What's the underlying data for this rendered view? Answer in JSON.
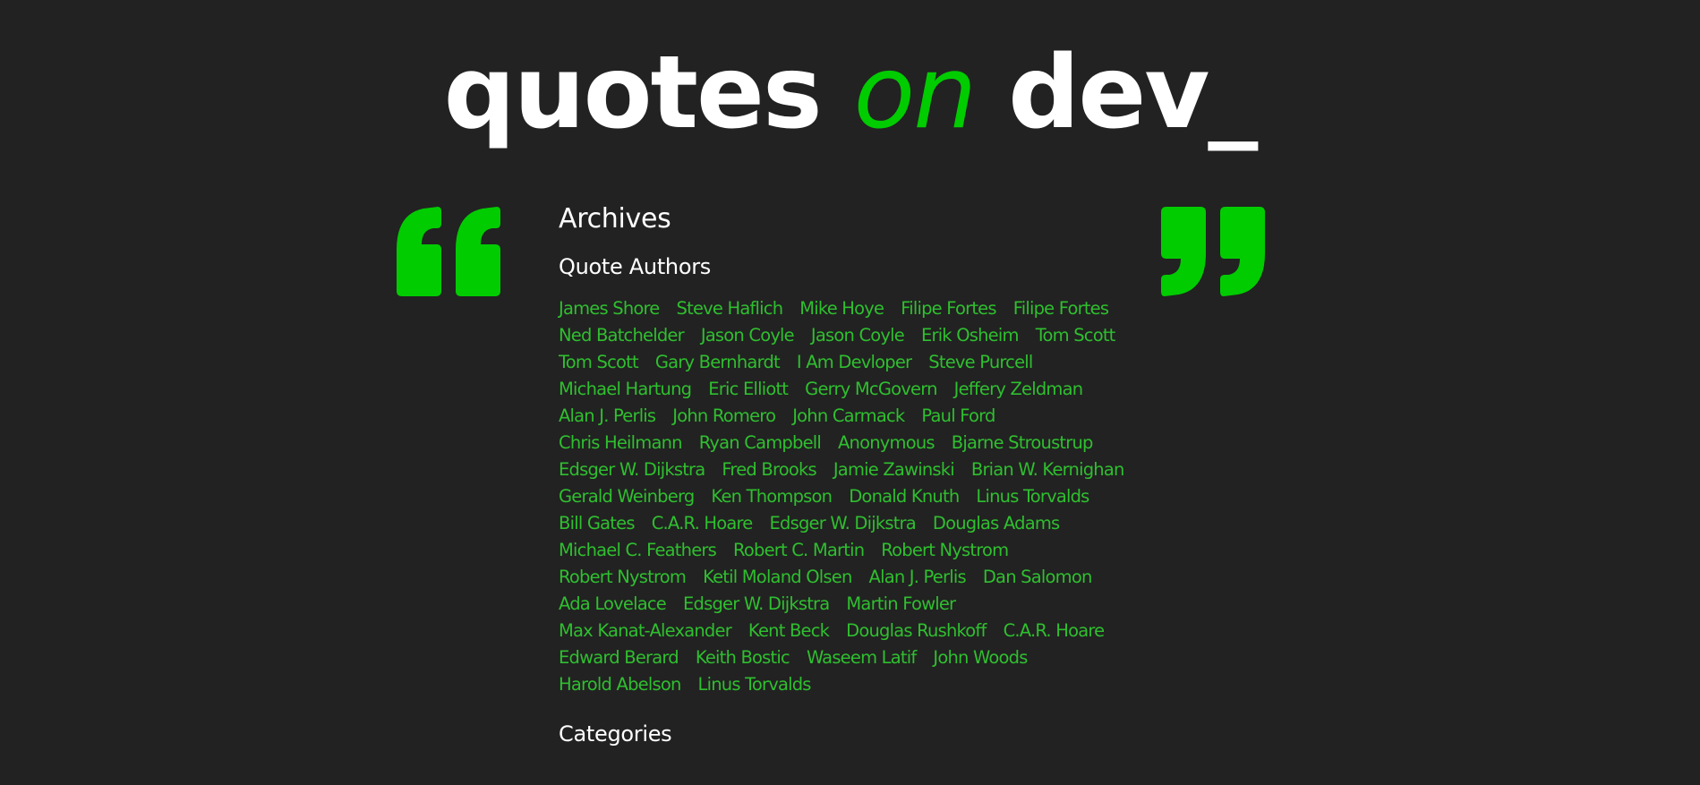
{
  "header": {
    "logo_part1": "quotes ",
    "logo_part2": "on",
    "logo_part3": " dev_"
  },
  "colors": {
    "background": "#222222",
    "accent": "#00cc00",
    "link": "#2fbf2f",
    "text": "#ffffff"
  },
  "icons": {
    "open_quote": "open-quote-icon",
    "close_quote": "close-quote-icon"
  },
  "main": {
    "title": "Archives",
    "authors_heading": "Quote Authors",
    "categories_heading": "Categories",
    "author_rows": [
      [
        "James Shore",
        "Steve Haflich",
        "Mike Hoye",
        "Filipe Fortes",
        "Filipe Fortes"
      ],
      [
        "Ned Batchelder",
        "Jason Coyle",
        "Jason Coyle",
        "Erik Osheim",
        "Tom Scott"
      ],
      [
        "Tom Scott",
        "Gary Bernhardt",
        "I Am Devloper",
        "Steve Purcell"
      ],
      [
        "Michael Hartung",
        "Eric Elliott",
        "Gerry McGovern",
        "Jeffery Zeldman"
      ],
      [
        "Alan J. Perlis",
        "John Romero",
        "John Carmack",
        "Paul Ford"
      ],
      [
        "Chris Heilmann",
        "Ryan Campbell",
        "Anonymous",
        "Bjarne Stroustrup"
      ],
      [
        "Edsger W. Dijkstra",
        "Fred Brooks",
        "Jamie Zawinski",
        "Brian W. Kernighan"
      ],
      [
        "Gerald Weinberg",
        "Ken Thompson",
        "Donald Knuth",
        "Linus Torvalds"
      ],
      [
        "Bill Gates",
        "C.A.R. Hoare",
        "Edsger W. Dijkstra",
        "Douglas Adams"
      ],
      [
        "Michael C. Feathers",
        "Robert C. Martin",
        "Robert Nystrom"
      ],
      [
        "Robert Nystrom",
        "Ketil Moland Olsen",
        "Alan J. Perlis",
        "Dan Salomon"
      ],
      [
        "Ada Lovelace",
        "Edsger W. Dijkstra",
        "Martin Fowler"
      ],
      [
        "Max Kanat-Alexander",
        "Kent Beck",
        "Douglas Rushkoff",
        "C.A.R. Hoare"
      ],
      [
        "Edward Berard",
        "Keith Bostic",
        "Waseem Latif",
        "John Woods"
      ],
      [
        "Harold Abelson",
        "Linus Torvalds"
      ]
    ]
  }
}
